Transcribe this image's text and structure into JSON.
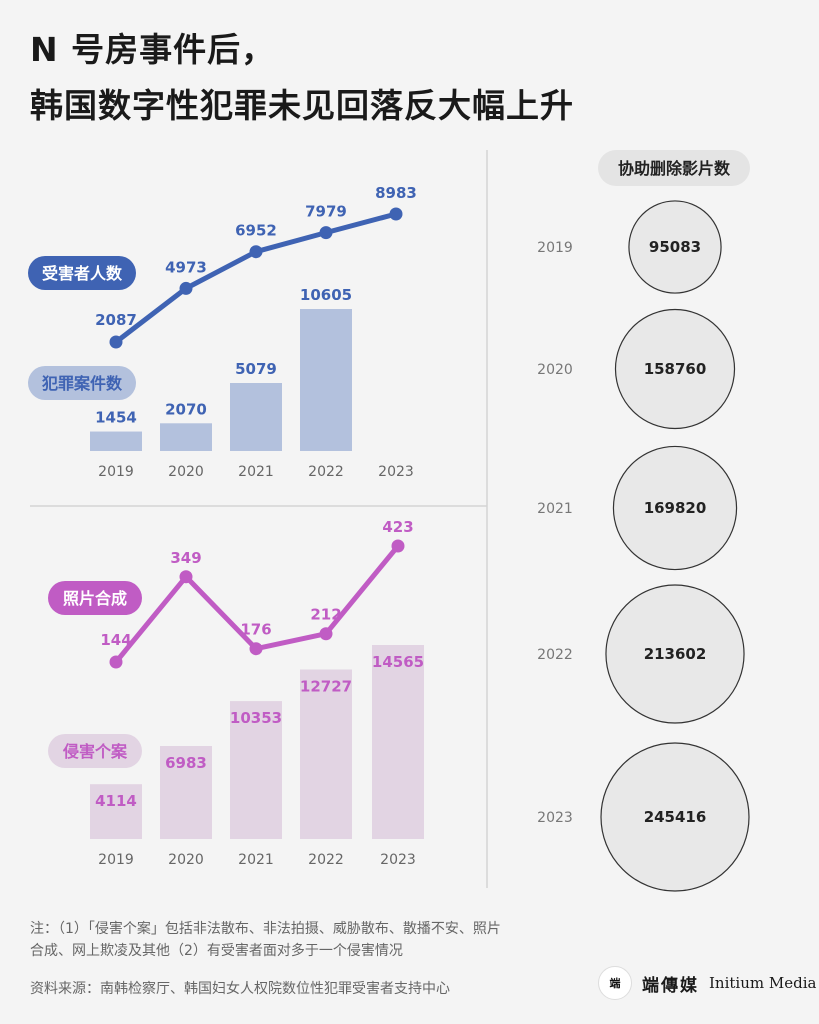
{
  "title": {
    "line1": "N 号房事件后，",
    "line2": "韩国数字性犯罪未见回落反大幅上升"
  },
  "colors": {
    "blue": "#3f63b3",
    "blue_bar": "#b3c1dd",
    "blue_pill_light": "#b3c1dd",
    "purple": "#c05cc4",
    "purple_bar": "#e2d4e3",
    "purple_pill_light": "#e2d4e3",
    "circle_fill": "#e8e8e8",
    "circle_stroke": "#333333"
  },
  "chart_data": [
    {
      "type": "line",
      "name": "受害者人数",
      "x": [
        "2019",
        "2020",
        "2021",
        "2022",
        "2023"
      ],
      "values": [
        2087,
        4973,
        6952,
        7979,
        8983
      ]
    },
    {
      "type": "bar",
      "name": "犯罪案件数",
      "categories": [
        "2019",
        "2020",
        "2021",
        "2022",
        "2023"
      ],
      "values": [
        1454,
        2070,
        5079,
        10605,
        null
      ]
    },
    {
      "type": "line",
      "name": "照片合成",
      "x": [
        "2019",
        "2020",
        "2021",
        "2022",
        "2023"
      ],
      "values": [
        144,
        349,
        176,
        212,
        423
      ]
    },
    {
      "type": "bar",
      "name": "侵害个案",
      "categories": [
        "2019",
        "2020",
        "2021",
        "2022",
        "2023"
      ],
      "values": [
        4114,
        6983,
        10353,
        12727,
        14565
      ]
    },
    {
      "type": "bubble",
      "name": "协助删除影片数",
      "categories": [
        "2019",
        "2020",
        "2021",
        "2022",
        "2023"
      ],
      "values": [
        95083,
        158760,
        169820,
        213602,
        245416
      ]
    }
  ],
  "labels": {
    "victims": "受害者人数",
    "cases": "犯罪案件数",
    "photo": "照片合成",
    "harm": "侵害个案",
    "deleted": "协助删除影片数"
  },
  "note": {
    "line1": "注：（1）「侵害个案」包括非法散布、非法拍摄、威胁散布、散播不安、照片",
    "line2": "合成、网上欺凌及其他（2）有受害者面对多于一个侵害情况"
  },
  "source": "资料来源：南韩检察厅、韩国妇女人权院数位性犯罪受害者支持中心",
  "brand": {
    "logo_text": "端",
    "cn": "端傳媒",
    "en": "Initium Media"
  }
}
